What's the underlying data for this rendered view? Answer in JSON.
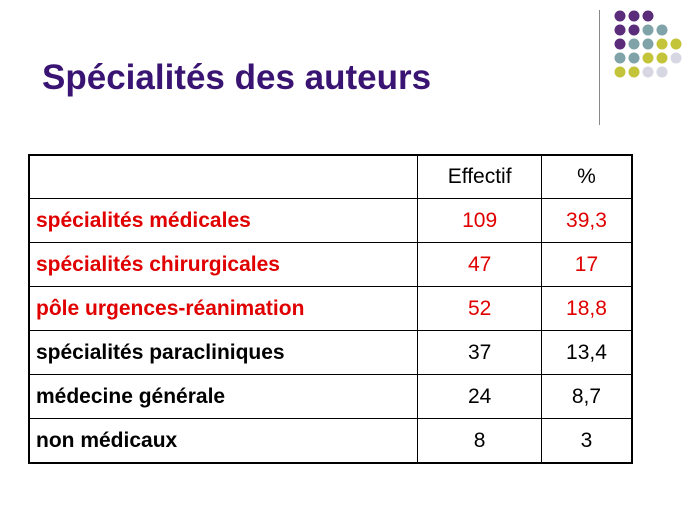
{
  "title": "Spécialités des auteurs",
  "colors": {
    "title": "#3a1472",
    "highlight": "#e00000",
    "dot_purple": "#5b2c7a",
    "dot_teal": "#7fa3a8",
    "dot_olive": "#c4c43a",
    "dot_grey": "#d7d7e4"
  },
  "table": {
    "headers": [
      "",
      "Effectif",
      "%"
    ],
    "rows": [
      {
        "label": "spécialités médicales",
        "effectif": "109",
        "pct": "39,3",
        "highlight": true
      },
      {
        "label": "spécialités chirurgicales",
        "effectif": "47",
        "pct": "17",
        "highlight": true
      },
      {
        "label": "pôle urgences-réanimation",
        "effectif": "52",
        "pct": "18,8",
        "highlight": true
      },
      {
        "label": "spécialités paracliniques",
        "effectif": "37",
        "pct": "13,4",
        "highlight": false
      },
      {
        "label": "médecine générale",
        "effectif": "24",
        "pct": "8,7",
        "highlight": false
      },
      {
        "label": "non médicaux",
        "effectif": "8",
        "pct": "3",
        "highlight": false
      }
    ]
  }
}
